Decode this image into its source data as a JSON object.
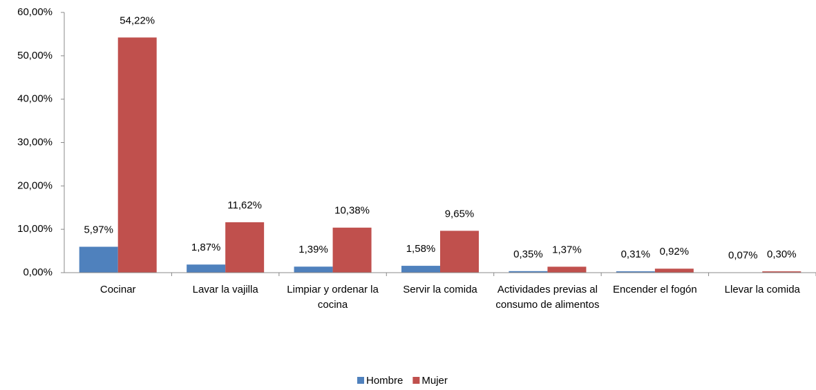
{
  "chart_data": {
    "type": "bar",
    "categories": [
      "Cocinar",
      "Lavar la vajilla",
      "Limpiar y ordenar la cocina",
      "Servir la comida",
      "Actividades previas al consumo de alimentos",
      "Encender el fogón",
      "Llevar la comida"
    ],
    "series": [
      {
        "name": "Hombre",
        "color": "#4f81bd",
        "values": [
          5.97,
          1.87,
          1.39,
          1.58,
          0.35,
          0.31,
          0.07
        ],
        "value_labels": [
          "5,97%",
          "1,87%",
          "1,39%",
          "1,58%",
          "0,35%",
          "0,31%",
          "0,07%"
        ]
      },
      {
        "name": "Mujer",
        "color": "#c0504d",
        "values": [
          54.22,
          11.62,
          10.38,
          9.65,
          1.37,
          0.92,
          0.3
        ],
        "value_labels": [
          "54,22%",
          "11,62%",
          "10,38%",
          "9,65%",
          "1,37%",
          "0,92%",
          "0,30%"
        ]
      }
    ],
    "ylim": [
      0,
      60
    ],
    "yticks": [
      {
        "value": 0,
        "label": "0,00%"
      },
      {
        "value": 10,
        "label": "10,00%"
      },
      {
        "value": 20,
        "label": "20,00%"
      },
      {
        "value": 30,
        "label": "30,00%"
      },
      {
        "value": 40,
        "label": "40,00%"
      },
      {
        "value": 50,
        "label": "50,00%"
      },
      {
        "value": 60,
        "label": "60,00%"
      }
    ],
    "legend": "bottom"
  }
}
